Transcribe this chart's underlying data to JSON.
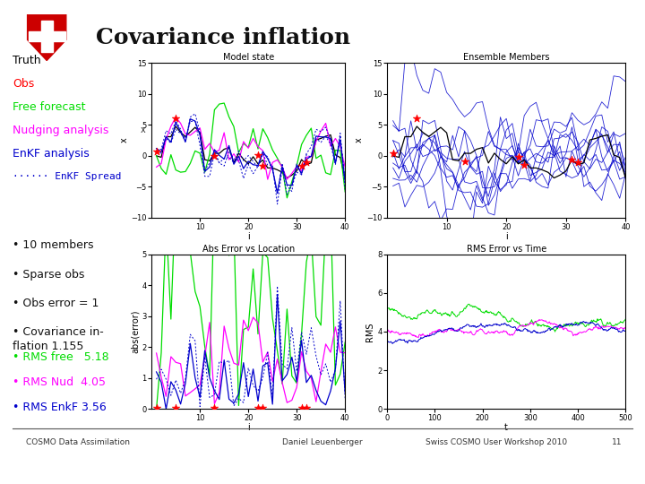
{
  "title": "Covariance inflation",
  "background_color": "#ffffff",
  "legend_items": [
    {
      "label": "Truth",
      "color": "#000000",
      "style": "solid",
      "has_line": false
    },
    {
      "label": "Obs",
      "color": "#ff0000",
      "style": "solid",
      "has_line": false
    },
    {
      "label": "Free forecast",
      "color": "#00dd00",
      "style": "solid",
      "has_line": false
    },
    {
      "label": "Nudging analysis",
      "color": "#ff00ff",
      "style": "solid",
      "has_line": false
    },
    {
      "label": "EnKF analysis",
      "color": "#0000cc",
      "style": "solid",
      "has_line": false
    },
    {
      "label": "EnKF Spread",
      "color": "#0000cc",
      "style": "dotted",
      "has_line": true
    }
  ],
  "bullets": [
    "10 members",
    "Sparse obs",
    "Obs error = 1",
    "Covariance in-\nflation 1.155"
  ],
  "rms_items": [
    {
      "label": "RMS free   5.18",
      "color": "#00dd00"
    },
    {
      "label": "RMS Nud  4.05",
      "color": "#ff00ff"
    },
    {
      "label": "RMS EnkF 3.56",
      "color": "#0000cc"
    }
  ],
  "footer_left": "COSMO Data Assimilation",
  "footer_center": "Daniel Leuenberger",
  "footer_right": "Swiss COSMO User Workshop 2010",
  "footer_page": "11",
  "plot1_title": "Model state",
  "plot2_title": "Ensemble Members",
  "plot3_title": "Abs Error vs Location",
  "plot4_title": "RMS Error vs Time",
  "plot1_xlabel": "i",
  "plot1_ylabel": "x",
  "plot2_xlabel": "i",
  "plot2_ylabel": "x",
  "plot3_xlabel": "i",
  "plot3_ylabel": "abs(error)",
  "plot4_xlabel": "t",
  "plot4_ylabel": "RMS",
  "plot1_ylim": [
    -10,
    15
  ],
  "plot2_ylim": [
    -10,
    15
  ],
  "plot3_ylim": [
    0,
    5
  ],
  "plot4_ylim": [
    0,
    8
  ],
  "plot1_xlim": [
    0,
    40
  ],
  "plot2_xlim": [
    0,
    40
  ],
  "plot3_xlim": [
    0,
    40
  ],
  "plot4_xlim": [
    0,
    500
  ],
  "colors": {
    "truth": "#000000",
    "obs": "#ff0000",
    "free": "#00dd00",
    "nud": "#ff00ff",
    "enkf": "#0000cc",
    "spread": "#0000cc"
  },
  "shield_color": "#cc0000"
}
